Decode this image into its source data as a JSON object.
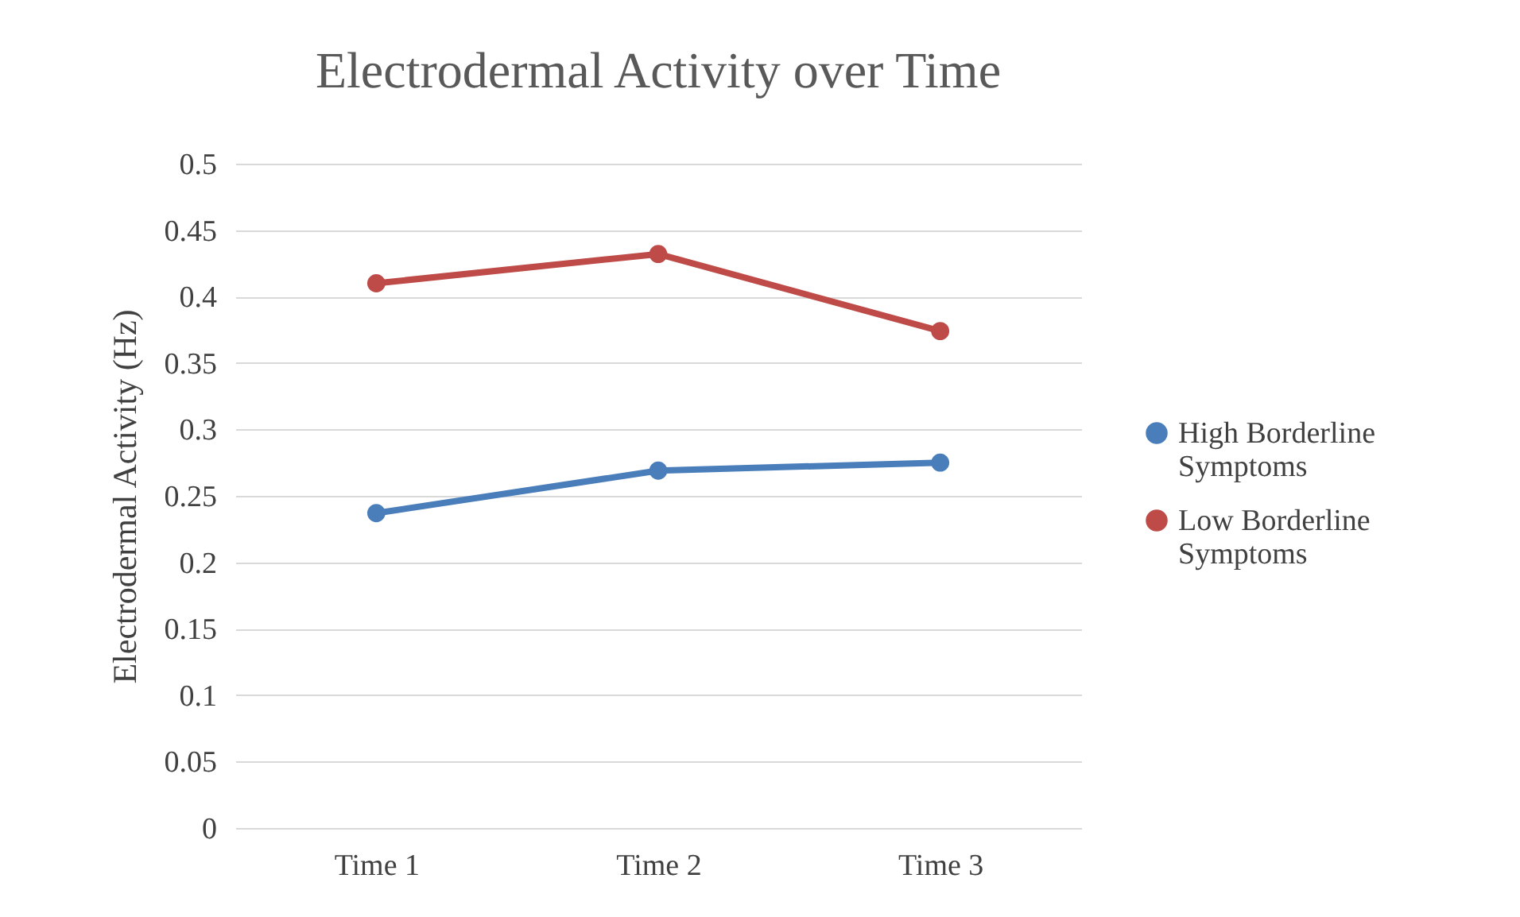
{
  "chart_data": {
    "type": "line",
    "title": "Electrodermal Activity over Time",
    "ylabel": "Electrodermal Activity (Hz)",
    "categories": [
      "Time 1",
      "Time 2",
      "Time 3"
    ],
    "series": [
      {
        "name": "High Borderline Symptoms",
        "color": "#4a7ebb",
        "values": [
          0.237,
          0.269,
          0.275
        ]
      },
      {
        "name": "Low Borderline Symptoms",
        "color": "#be4b48",
        "values": [
          0.41,
          0.432,
          0.374
        ]
      }
    ],
    "ylim": [
      0,
      0.5
    ],
    "yticks": [
      0,
      0.05,
      0.1,
      0.15,
      0.2,
      0.25,
      0.3,
      0.35,
      0.4,
      0.45,
      0.5
    ],
    "grid": "y",
    "legend": "right",
    "marker": "circle",
    "line_style": "solid"
  }
}
